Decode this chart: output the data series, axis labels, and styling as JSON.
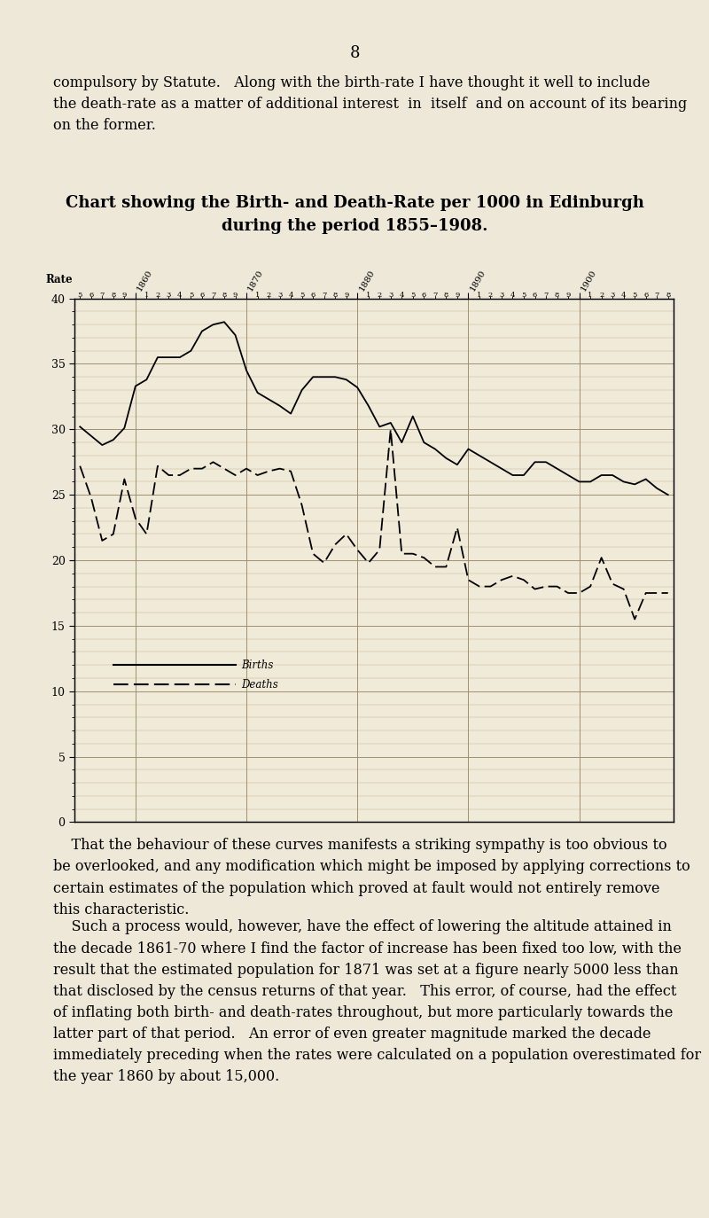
{
  "title_line1": "Chart showing the Birth- and Death-Rate per 1000 in Edinburgh",
  "title_line2": "during the period 1855–1908.",
  "page_number": "8",
  "header_text": "compulsory by Statute.   Along with the birth-rate I have thought it well to include\nthe death-rate as a matter of additional interest  in  itself  and on account of its bearing\non the former.",
  "footer_text1": "    That the behaviour of these curves manifests a striking sympathy is too obvious to\nbe overlooked, and any modification which might be imposed by applying corrections to\ncertain estimates of the population which proved at fault would not entirely remove\nthis characteristic.",
  "footer_text2": "    Such a process would, however, have the effect of lowering the altitude attained in\nthe decade 1861-70 where I find the factor of increase has been fixed too low, with the\nresult that the estimated population for 1871 was set at a figure nearly 5000 less than\nthat disclosed by the census returns of that year.   This error, of course, had the effect\nof inflating both birth- and death-rates throughout, but more particularly towards the\nlatter part of that period.   An error of even greater magnitude marked the decade\nimmediately preceding when the rates were calculated on a population overestimated for\nthe year 1860 by about 15,000.",
  "bg_color": "#ede8d8",
  "chart_bg_color": "#f0ead8",
  "grid_major_color": "#a09070",
  "grid_minor_color": "#c8b898",
  "line_color": "#000000",
  "ylim": [
    0,
    40
  ],
  "y_major_ticks": [
    0,
    5,
    10,
    15,
    20,
    25,
    30,
    35,
    40
  ],
  "start_year": 1855,
  "end_year": 1908,
  "births": [
    30.2,
    29.5,
    28.8,
    29.2,
    30.1,
    33.3,
    33.8,
    35.5,
    35.5,
    35.5,
    36.0,
    37.5,
    38.0,
    38.2,
    37.2,
    34.5,
    32.8,
    32.3,
    31.8,
    31.2,
    33.0,
    34.0,
    34.0,
    34.0,
    33.8,
    33.2,
    31.8,
    30.2,
    30.5,
    29.0,
    31.0,
    29.0,
    28.5,
    27.8,
    27.3,
    28.5,
    28.0,
    27.5,
    27.0,
    26.5,
    26.5,
    27.5,
    27.5,
    27.0,
    26.5,
    26.0,
    26.0,
    26.5,
    26.5,
    26.0,
    25.8,
    26.2,
    25.5,
    25.0
  ],
  "deaths": [
    27.2,
    24.8,
    21.5,
    22.0,
    26.2,
    23.2,
    22.0,
    27.2,
    26.5,
    26.5,
    27.0,
    27.0,
    27.5,
    27.0,
    26.5,
    27.0,
    26.5,
    26.8,
    27.0,
    26.8,
    24.2,
    20.5,
    19.8,
    21.2,
    22.0,
    20.8,
    19.8,
    20.8,
    30.0,
    20.5,
    20.5,
    20.2,
    19.5,
    19.5,
    22.5,
    18.5,
    18.0,
    18.0,
    18.5,
    18.8,
    18.5,
    17.8,
    18.0,
    18.0,
    17.5,
    17.5,
    18.0,
    20.2,
    18.2,
    17.8,
    15.5,
    17.5,
    17.5,
    17.5
  ]
}
